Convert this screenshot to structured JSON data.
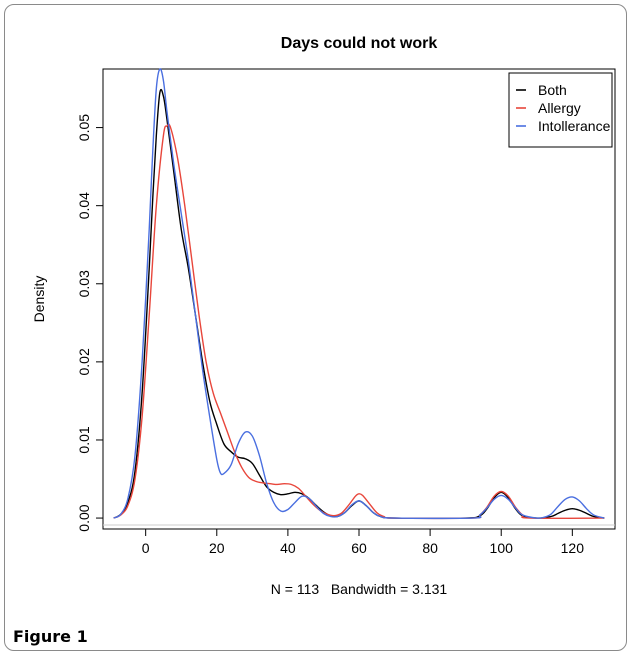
{
  "figure_caption": "Figure 1",
  "chart_data": {
    "type": "line",
    "title": "Days could not work",
    "xlabel": "N = 113   Bandwidth = 3.131",
    "ylabel": "Density",
    "xlim": [
      -12,
      132
    ],
    "ylim": [
      -0.0014,
      0.0575
    ],
    "x_ticks": [
      0,
      20,
      40,
      60,
      80,
      100,
      120
    ],
    "y_ticks": [
      0.0,
      0.01,
      0.02,
      0.03,
      0.04,
      0.05
    ],
    "y_tick_labels": [
      "0.00",
      "0.01",
      "0.02",
      "0.03",
      "0.04",
      "0.05"
    ],
    "legend_position": "top-right",
    "series": [
      {
        "name": "Both",
        "color": "#000000",
        "points": [
          [
            -9,
            0
          ],
          [
            -7,
            0.0005
          ],
          [
            -5,
            0.002
          ],
          [
            -3,
            0.006
          ],
          [
            -1,
            0.016
          ],
          [
            1,
            0.032
          ],
          [
            2,
            0.041
          ],
          [
            3,
            0.049
          ],
          [
            4,
            0.0545
          ],
          [
            5,
            0.054
          ],
          [
            6,
            0.051
          ],
          [
            8,
            0.044
          ],
          [
            10,
            0.037
          ],
          [
            12,
            0.032
          ],
          [
            14,
            0.026
          ],
          [
            16,
            0.02
          ],
          [
            18,
            0.015
          ],
          [
            20,
            0.012
          ],
          [
            22,
            0.0095
          ],
          [
            24,
            0.0085
          ],
          [
            26,
            0.0078
          ],
          [
            28,
            0.0076
          ],
          [
            30,
            0.007
          ],
          [
            32,
            0.0055
          ],
          [
            34,
            0.004
          ],
          [
            36,
            0.0033
          ],
          [
            38,
            0.003
          ],
          [
            40,
            0.0031
          ],
          [
            42,
            0.0033
          ],
          [
            44,
            0.0031
          ],
          [
            46,
            0.0025
          ],
          [
            48,
            0.0016
          ],
          [
            50,
            0.0008
          ],
          [
            52,
            0.0003
          ],
          [
            54,
            0.0002
          ],
          [
            56,
            0.0007
          ],
          [
            58,
            0.0016
          ],
          [
            60,
            0.0022
          ],
          [
            62,
            0.0016
          ],
          [
            64,
            0.0007
          ],
          [
            66,
            0.0002
          ],
          [
            70,
            0
          ],
          [
            90,
            0
          ],
          [
            94,
            0.0003
          ],
          [
            96,
            0.0012
          ],
          [
            98,
            0.0026
          ],
          [
            100,
            0.0033
          ],
          [
            102,
            0.0026
          ],
          [
            104,
            0.0012
          ],
          [
            106,
            0.0003
          ],
          [
            110,
            0
          ],
          [
            114,
            0.0002
          ],
          [
            116,
            0.0006
          ],
          [
            118,
            0.001
          ],
          [
            120,
            0.0012
          ],
          [
            122,
            0.001
          ],
          [
            124,
            0.0006
          ],
          [
            126,
            0.0002
          ],
          [
            129,
            0
          ]
        ]
      },
      {
        "name": "Allergy",
        "color": "#e8463b",
        "points": [
          [
            -9,
            0
          ],
          [
            -7,
            0.0004
          ],
          [
            -5,
            0.0016
          ],
          [
            -3,
            0.005
          ],
          [
            -1,
            0.013
          ],
          [
            1,
            0.026
          ],
          [
            3,
            0.04
          ],
          [
            5,
            0.049
          ],
          [
            6,
            0.0502
          ],
          [
            7,
            0.05
          ],
          [
            9,
            0.046
          ],
          [
            11,
            0.04
          ],
          [
            13,
            0.033
          ],
          [
            15,
            0.026
          ],
          [
            17,
            0.02
          ],
          [
            19,
            0.016
          ],
          [
            21,
            0.0135
          ],
          [
            23,
            0.011
          ],
          [
            25,
            0.0085
          ],
          [
            27,
            0.0065
          ],
          [
            29,
            0.0052
          ],
          [
            31,
            0.0047
          ],
          [
            33,
            0.0045
          ],
          [
            35,
            0.0044
          ],
          [
            37,
            0.0043
          ],
          [
            39,
            0.0044
          ],
          [
            41,
            0.0043
          ],
          [
            43,
            0.0038
          ],
          [
            45,
            0.0028
          ],
          [
            47,
            0.0018
          ],
          [
            49,
            0.001
          ],
          [
            51,
            0.0005
          ],
          [
            53,
            0.0003
          ],
          [
            55,
            0.0006
          ],
          [
            57,
            0.0016
          ],
          [
            59,
            0.0028
          ],
          [
            60,
            0.0031
          ],
          [
            61,
            0.0029
          ],
          [
            63,
            0.0018
          ],
          [
            65,
            0.0007
          ],
          [
            67,
            0.0002
          ],
          [
            70,
            0
          ],
          [
            92,
            0
          ],
          [
            94,
            0.0004
          ],
          [
            96,
            0.0014
          ],
          [
            98,
            0.0028
          ],
          [
            100,
            0.0034
          ],
          [
            102,
            0.0028
          ],
          [
            104,
            0.0014
          ],
          [
            106,
            0.0004
          ],
          [
            108,
            0
          ],
          [
            129,
            0
          ]
        ]
      },
      {
        "name": "Intollerance",
        "color": "#4a6fe0",
        "points": [
          [
            -9,
            0
          ],
          [
            -7,
            0.0005
          ],
          [
            -5,
            0.0025
          ],
          [
            -3,
            0.008
          ],
          [
            -1,
            0.02
          ],
          [
            1,
            0.037
          ],
          [
            2,
            0.047
          ],
          [
            3,
            0.055
          ],
          [
            4,
            0.0575
          ],
          [
            5,
            0.056
          ],
          [
            6,
            0.052
          ],
          [
            8,
            0.045
          ],
          [
            10,
            0.039
          ],
          [
            12,
            0.033
          ],
          [
            14,
            0.026
          ],
          [
            16,
            0.019
          ],
          [
            18,
            0.013
          ],
          [
            20,
            0.0075
          ],
          [
            21,
            0.0058
          ],
          [
            22,
            0.0057
          ],
          [
            24,
            0.0068
          ],
          [
            26,
            0.0095
          ],
          [
            28,
            0.011
          ],
          [
            30,
            0.0105
          ],
          [
            32,
            0.008
          ],
          [
            34,
            0.0045
          ],
          [
            36,
            0.002
          ],
          [
            38,
            0.0009
          ],
          [
            40,
            0.0011
          ],
          [
            42,
            0.002
          ],
          [
            44,
            0.0028
          ],
          [
            46,
            0.0025
          ],
          [
            48,
            0.0015
          ],
          [
            50,
            0.0006
          ],
          [
            52,
            0.0002
          ],
          [
            54,
            0.0002
          ],
          [
            56,
            0.0007
          ],
          [
            58,
            0.0017
          ],
          [
            60,
            0.0022
          ],
          [
            62,
            0.0016
          ],
          [
            64,
            0.0007
          ],
          [
            66,
            0.0002
          ],
          [
            70,
            0
          ],
          [
            92,
            0
          ],
          [
            94,
            0.0004
          ],
          [
            96,
            0.0013
          ],
          [
            98,
            0.0024
          ],
          [
            100,
            0.0029
          ],
          [
            102,
            0.0024
          ],
          [
            104,
            0.0013
          ],
          [
            106,
            0.0004
          ],
          [
            110,
            0
          ],
          [
            112,
            0.0001
          ],
          [
            114,
            0.0005
          ],
          [
            116,
            0.0015
          ],
          [
            118,
            0.0024
          ],
          [
            120,
            0.0027
          ],
          [
            122,
            0.0022
          ],
          [
            124,
            0.0012
          ],
          [
            126,
            0.0004
          ],
          [
            129,
            0
          ]
        ]
      }
    ]
  }
}
